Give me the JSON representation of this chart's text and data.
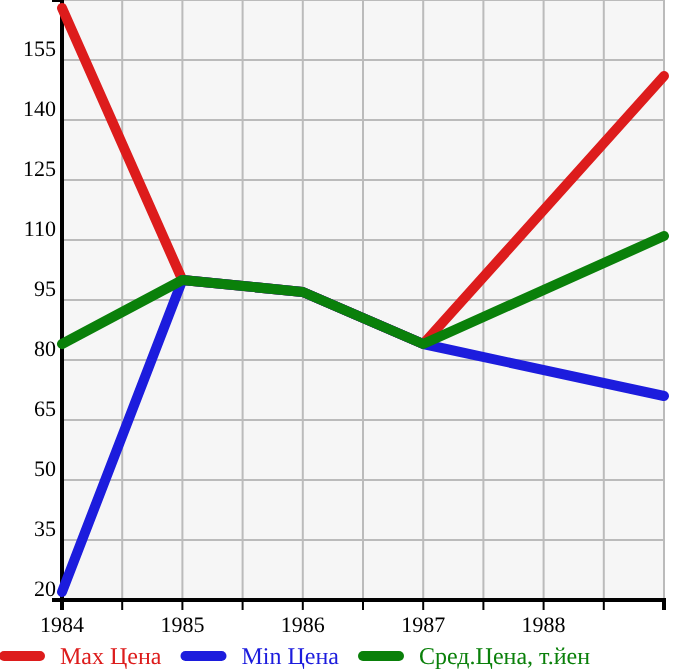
{
  "chart_data": {
    "type": "line",
    "x": [
      1984,
      1985,
      1986,
      1987,
      1989
    ],
    "series": [
      {
        "name": "Max Цена",
        "color": "#dd1c1c",
        "values": [
          168,
          100,
          97,
          84,
          151
        ]
      },
      {
        "name": "Min Цена",
        "color": "#1c1cdd",
        "values": [
          22,
          100,
          97,
          84,
          71
        ]
      },
      {
        "name": "Сред.Цена, т.йен",
        "color": "#0a800a",
        "values": [
          84,
          100,
          97,
          84,
          111
        ]
      }
    ],
    "xlim": [
      1984,
      1989
    ],
    "xticks": [
      1984,
      {
        "value": 1984.5,
        "label": null
      },
      1985,
      {
        "value": 1985.5,
        "label": null
      },
      1986,
      {
        "value": 1986.5,
        "label": null
      },
      1987,
      {
        "value": 1987.5,
        "label": null
      },
      1988,
      {
        "value": 1988.5,
        "label": null
      },
      {
        "value": 1989,
        "label": null
      }
    ],
    "ylim": [
      20,
      170
    ],
    "yticks": [
      20,
      35,
      50,
      65,
      80,
      95,
      110,
      125,
      140,
      155,
      {
        "value": 170,
        "label": null
      }
    ],
    "grid": true,
    "legend": "bottom",
    "marker": "none",
    "line_style": "solid"
  }
}
